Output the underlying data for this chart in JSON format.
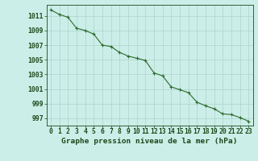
{
  "x": [
    0,
    1,
    2,
    3,
    4,
    5,
    6,
    7,
    8,
    9,
    10,
    11,
    12,
    13,
    14,
    15,
    16,
    17,
    18,
    19,
    20,
    21,
    22,
    23
  ],
  "y": [
    1011.8,
    1011.2,
    1010.8,
    1009.3,
    1009.0,
    1008.5,
    1007.0,
    1006.8,
    1006.0,
    1005.5,
    1005.2,
    1004.9,
    1003.2,
    1002.8,
    1001.3,
    1000.9,
    1000.5,
    999.2,
    998.7,
    998.3,
    997.6,
    997.5,
    997.1,
    996.6
  ],
  "line_color": "#2d6a2d",
  "marker_color": "#2d6a2d",
  "bg_color": "#cceee8",
  "grid_color": "#aad4cc",
  "title": "Graphe pression niveau de la mer (hPa)",
  "ylim_min": 996,
  "ylim_max": 1012.5,
  "yticks": [
    997,
    999,
    1001,
    1003,
    1005,
    1007,
    1009,
    1011
  ],
  "xticks": [
    0,
    1,
    2,
    3,
    4,
    5,
    6,
    7,
    8,
    9,
    10,
    11,
    12,
    13,
    14,
    15,
    16,
    17,
    18,
    19,
    20,
    21,
    22,
    23
  ],
  "title_color": "#1a4a1a",
  "tick_color": "#1a4a1a",
  "title_fontsize": 6.8,
  "tick_fontsize": 5.8,
  "title_fontweight": "bold"
}
